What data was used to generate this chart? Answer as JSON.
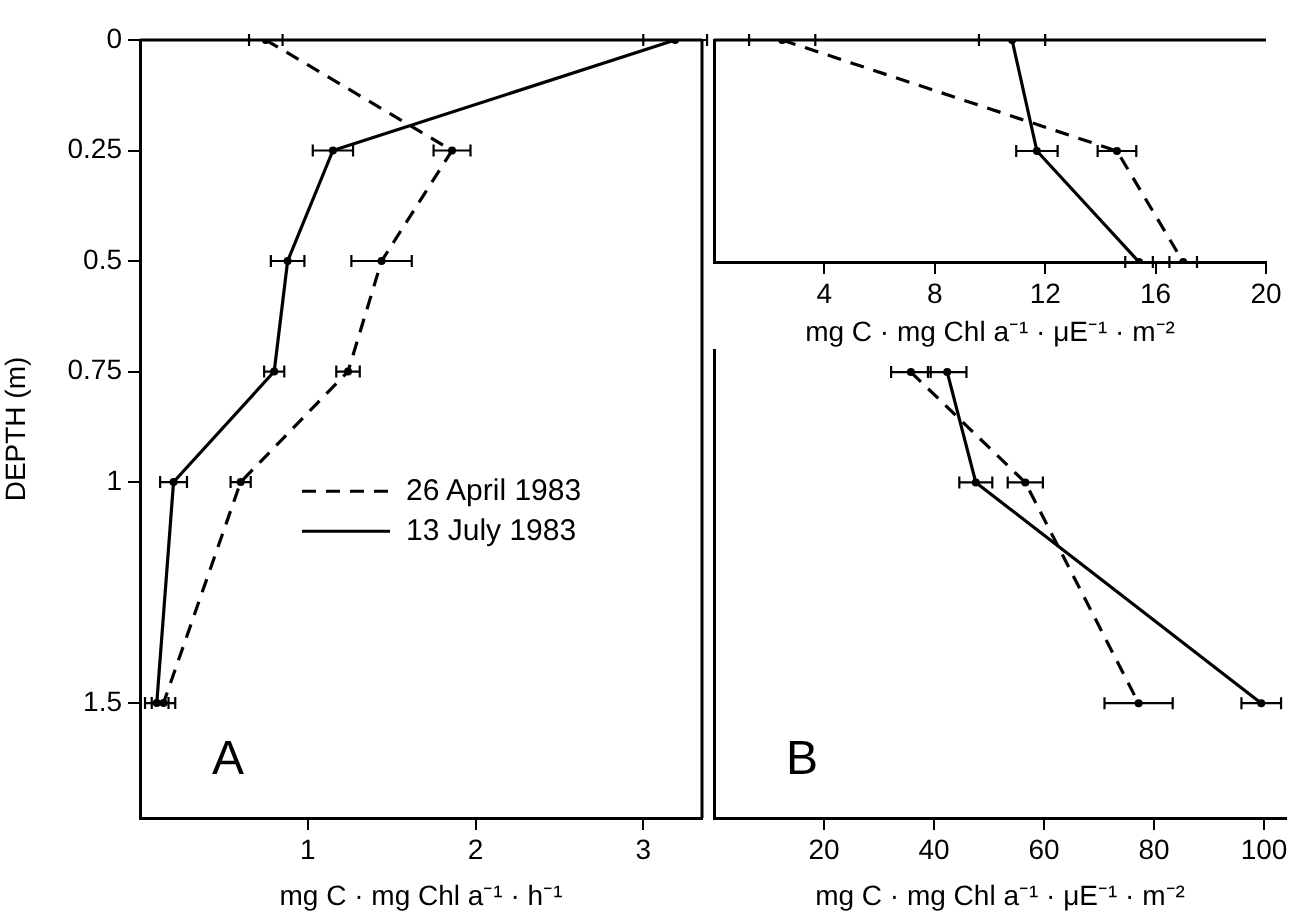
{
  "chart_data": [
    {
      "type": "line",
      "ylabel": "DEPTH (m)",
      "xlabel": "mg C · mg Chl a⁻¹ · h⁻¹",
      "annotations": [
        "A"
      ],
      "xlim": [
        0,
        3.35
      ],
      "xticks": [
        1,
        2,
        3
      ],
      "ylim": [
        1.76,
        0
      ],
      "yticks": [
        0,
        0.25,
        0.5,
        0.75,
        1,
        1.5
      ],
      "legend": "right",
      "marker": "circle",
      "series": [
        {
          "name": "26 April 1983",
          "color": "#000000",
          "line_style": "dashed",
          "x": [
            0.75,
            1.86,
            1.44,
            1.24,
            0.6,
            0.14
          ],
          "values": [
            0,
            0.25,
            0.5,
            0.75,
            1,
            1.5
          ],
          "xerrors": [
            0.1,
            0.11,
            0.18,
            0.07,
            0.06,
            0.07
          ]
        },
        {
          "name": "13 July 1983",
          "color": "#000000",
          "line_style": "solid",
          "x": [
            3.19,
            1.15,
            0.88,
            0.8,
            0.2,
            0.1
          ],
          "values": [
            0,
            0.25,
            0.5,
            0.75,
            1,
            1.5
          ],
          "xerrors": [
            0.19,
            0.12,
            0.1,
            0.06,
            0.08,
            0.07
          ]
        }
      ]
    },
    {
      "type": "line",
      "orientation": "horizontal",
      "xlabel": "mg C · mg Chl a⁻¹ · μE⁻¹ · m⁻²",
      "categories": [
        null,
        null,
        null
      ],
      "xlim": [
        0,
        20
      ],
      "xticks": [
        4,
        8,
        12,
        16,
        20
      ],
      "marker": "circle",
      "series": [
        {
          "color": "#000000",
          "line_style": "dashed",
          "values": [
            2.47,
            14.6,
            17.0
          ],
          "errors": [
            1.2,
            0.7,
            0.5
          ]
        },
        {
          "color": "#000000",
          "line_style": "solid",
          "values": [
            10.8,
            11.7,
            15.4
          ],
          "errors": [
            1.2,
            0.75,
            0.5
          ]
        }
      ]
    },
    {
      "type": "line",
      "orientation": "horizontal",
      "xlabel": "mg C · mg Chl a⁻¹ · μE⁻¹ · m⁻²",
      "annotations": [
        "B"
      ],
      "categories": [
        null,
        null,
        null,
        null
      ],
      "xlim": [
        0,
        104
      ],
      "xticks": [
        20,
        40,
        60,
        80,
        100
      ],
      "marker": "circle",
      "series": [
        {
          "color": "#000000",
          "line_style": "dashed",
          "values": [
            35.8,
            56.6,
            null,
            77.2
          ],
          "errors": [
            3.6,
            3.2,
            null,
            6.2
          ]
        },
        {
          "color": "#000000",
          "line_style": "solid",
          "values": [
            42.4,
            47.6,
            null,
            99.5
          ],
          "errors": [
            3.5,
            3,
            null,
            3.6
          ]
        }
      ]
    }
  ]
}
